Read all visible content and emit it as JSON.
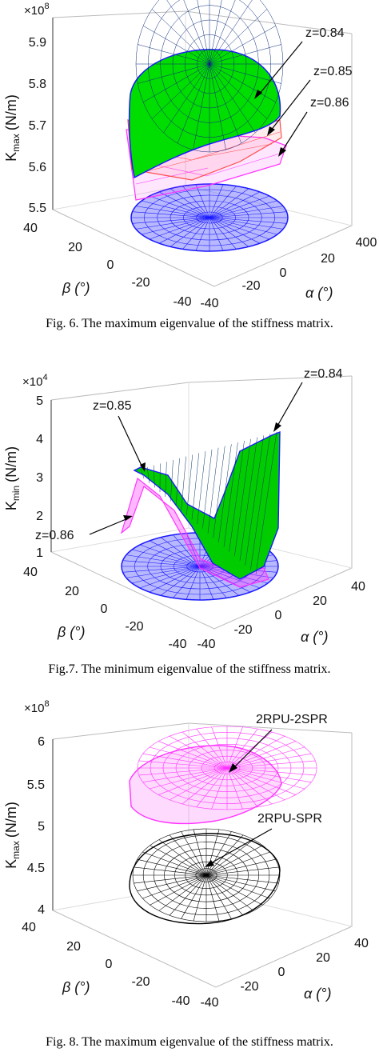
{
  "figures": [
    {
      "id": "fig6",
      "caption": "Fig. 6. The maximum eigenvalue of the stiffness matrix.",
      "chart_data": {
        "type": "surface3d",
        "zlabel": "K_max (N/m)",
        "zlabel_main": "K",
        "zlabel_sub": "max",
        "zlabel_unit": "(N/m)",
        "scale_base": "×10",
        "scale_exp": "8",
        "z_ticks": [
          "5.9",
          "5.8",
          "5.7",
          "5.6",
          "5.5"
        ],
        "zlim": [
          5.5,
          5.9
        ],
        "beta_ticks": [
          "40",
          "20",
          "0",
          "-20",
          "-40"
        ],
        "alpha_ticks": [
          "-40",
          "-20",
          "0",
          "20",
          "400"
        ],
        "xlabel": "α (°)",
        "ylabel": "β (°)",
        "grid": true,
        "annotations": [
          "z=0.84",
          "z=0.85",
          "z=0.86"
        ],
        "series": [
          {
            "name": "z=0.84",
            "color": "#00dd00",
            "edge": "#1a1aff"
          },
          {
            "name": "z=0.85",
            "color": "#ff4b4b",
            "edge": "#ff4b4b"
          },
          {
            "name": "z=0.86",
            "color": "#ff33ff",
            "edge": "#ff33ff"
          }
        ],
        "projection_color": "#2a2aff"
      }
    },
    {
      "id": "fig7",
      "caption": "Fig.7. The minimum eigenvalue of the stiffness matrix.",
      "chart_data": {
        "type": "surface3d",
        "zlabel": "K_min (N/m)",
        "zlabel_main": "K",
        "zlabel_sub": "min",
        "zlabel_unit": "(N/m)",
        "scale_base": "×10",
        "scale_exp": "4",
        "z_ticks": [
          "5",
          "4",
          "3",
          "2",
          "1"
        ],
        "zlim": [
          1,
          5
        ],
        "beta_ticks": [
          "40",
          "20",
          "0",
          "-20",
          "-40"
        ],
        "alpha_ticks": [
          "-40",
          "-20",
          "0",
          "20",
          "40"
        ],
        "xlabel": "α (°)",
        "ylabel": "β (°)",
        "grid": true,
        "annotations": [
          "z=0.84",
          "z=0.85",
          "z=0.86"
        ],
        "series": [
          {
            "name": "z=0.84",
            "color": "#00cc00",
            "edge": "#1a1aff"
          },
          {
            "name": "z=0.85",
            "color": "#3333ff",
            "edge": "#3333ff"
          },
          {
            "name": "z=0.86",
            "color": "#ff33ff",
            "edge": "#ff33ff"
          }
        ],
        "projection_color": "#2a2aff"
      }
    },
    {
      "id": "fig8",
      "caption": "Fig. 8. The maximum eigenvalue of the stiffness matrix.",
      "chart_data": {
        "type": "surface3d",
        "zlabel": "K_max (N/m)",
        "zlabel_main": "K",
        "zlabel_sub": "max",
        "zlabel_unit": "(N/m)",
        "scale_base": "×10",
        "scale_exp": "8",
        "z_ticks": [
          "6",
          "5.5",
          "5",
          "4.5",
          "4"
        ],
        "zlim": [
          4,
          6
        ],
        "beta_ticks": [
          "40",
          "20",
          "0",
          "-20",
          "-40"
        ],
        "alpha_ticks": [
          "-40",
          "-20",
          "0",
          "20",
          "40"
        ],
        "xlabel": "α (°)",
        "ylabel": "β (°)",
        "grid": true,
        "annotations": [
          "2RPU-2SPR",
          "2RPU-SPR"
        ],
        "series": [
          {
            "name": "2RPU-2SPR",
            "color": "#ff33ff",
            "edge": "#ff33ff"
          },
          {
            "name": "2RPU-SPR",
            "color": "#000000",
            "edge": "#000000"
          }
        ]
      }
    }
  ]
}
